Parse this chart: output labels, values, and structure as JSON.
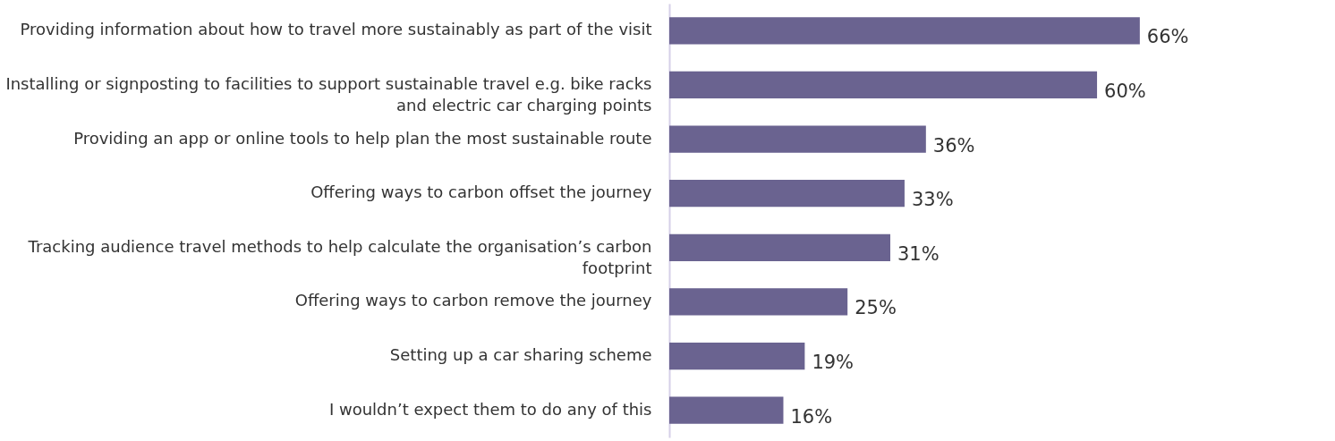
{
  "chart_data": {
    "type": "bar",
    "orientation": "horizontal",
    "categories": [
      "Providing information about how to travel more sustainably as part of the visit",
      "Installing or signposting to facilities to support sustainable travel e.g. bike racks and electric car charging points",
      "Providing an app or online tools to help plan the most sustainable route",
      "Offering ways to carbon offset the journey",
      "Tracking audience travel methods to help calculate the organisation’s carbon footprint",
      "Offering ways to carbon remove the journey",
      "Setting up a car sharing scheme",
      "I wouldn’t expect them to do any of this"
    ],
    "values": [
      66,
      60,
      36,
      33,
      31,
      25,
      19,
      16
    ],
    "value_labels": [
      "66%",
      "60%",
      "36%",
      "33%",
      "31%",
      "25%",
      "19%",
      "16%"
    ],
    "color": "#6a6390"
  }
}
